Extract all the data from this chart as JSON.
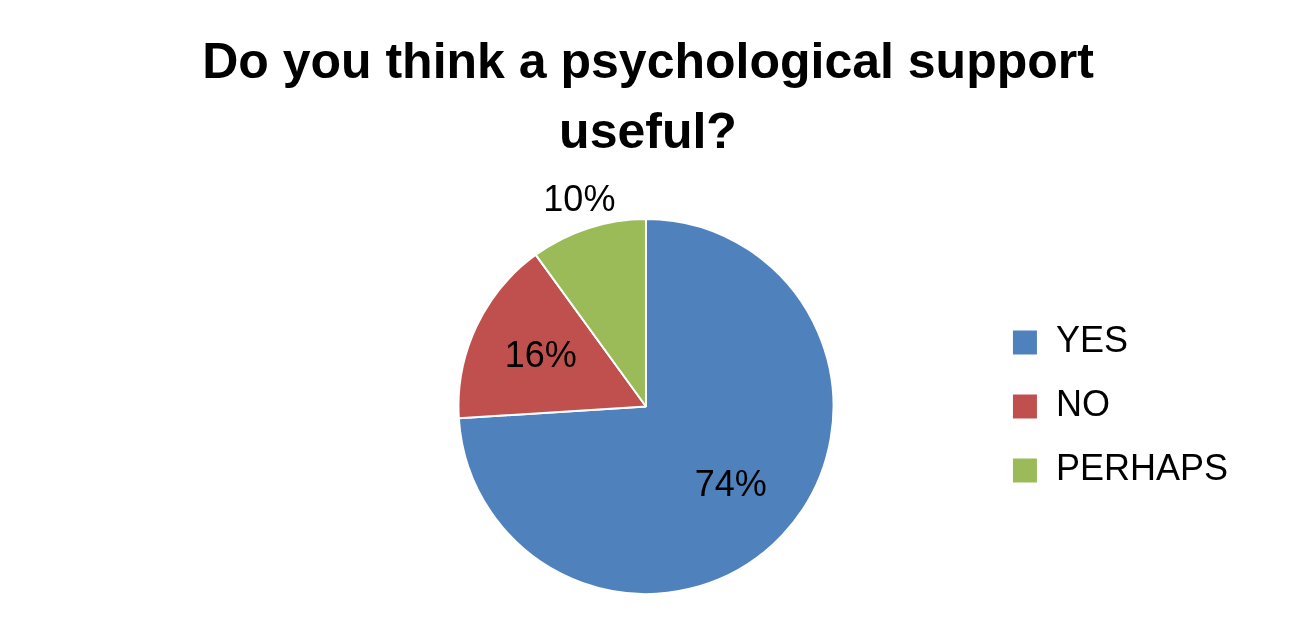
{
  "chart_data": {
    "type": "pie",
    "title": "Do you think a psychological support useful?",
    "categories": [
      "YES",
      "NO",
      "PERHAPS"
    ],
    "values": [
      74,
      16,
      10
    ],
    "colors": [
      "#4f81bd",
      "#c0504d",
      "#9bbb59"
    ],
    "value_labels": [
      "74%",
      "16%",
      "10%"
    ],
    "legend": "right"
  }
}
